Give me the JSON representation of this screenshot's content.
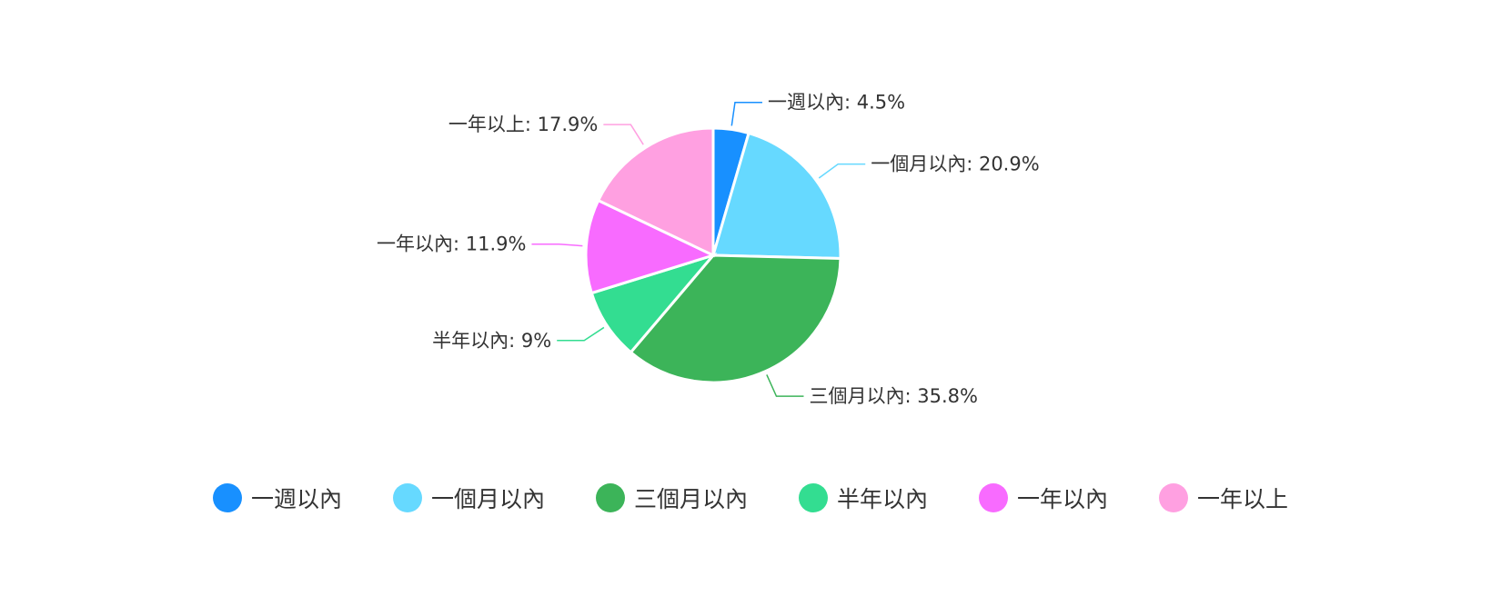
{
  "chart_data": {
    "type": "pie",
    "categories": [
      "一週以內",
      "一個月以內",
      "三個月以內",
      "半年以內",
      "一年以內",
      "一年以上"
    ],
    "values": [
      4.5,
      20.9,
      35.8,
      9,
      11.9,
      17.9
    ],
    "labels": [
      "一週以內: 4.5%",
      "一個月以內: 20.9%",
      "三個月以內: 35.8%",
      "半年以內: 9%",
      "一年以內: 11.9%",
      "一年以上: 17.9%"
    ],
    "colors": [
      "#1890FF",
      "#66D9FF",
      "#3CB459",
      "#33DD91",
      "#F86BFF",
      "#FFA0E1"
    ],
    "legend_position": "bottom",
    "title": ""
  }
}
